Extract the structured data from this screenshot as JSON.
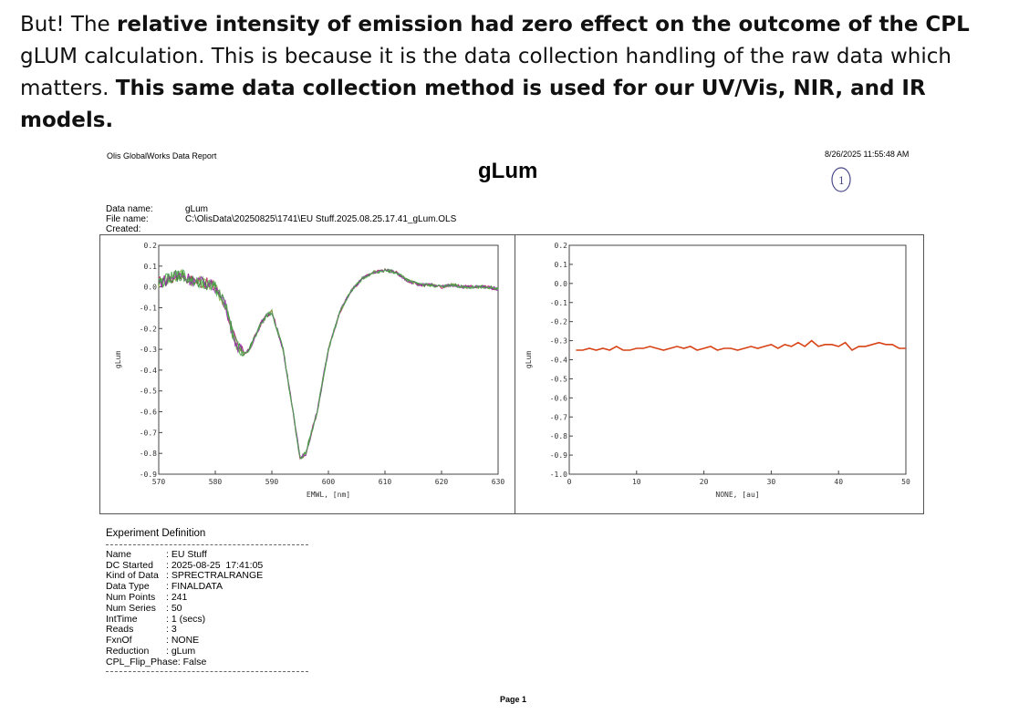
{
  "intro": {
    "p1": "But! The ",
    "b1": "relative intensity of emission had zero effect on the outcome of the CPL",
    "p2": " gLUM calculation. This is because it is the data collection handling of the raw data which matters. ",
    "b2": "This same data collection method is used for our UV/Vis, NIR, and IR models."
  },
  "report": {
    "label": "Olis GlobalWorks Data Report",
    "date": "8/26/2025 11:55:48 AM",
    "title": "gLum",
    "annotation": "1"
  },
  "meta": [
    {
      "key": "Data name:",
      "value": "gLum"
    },
    {
      "key": "File name:",
      "value": "C:\\OlisData\\20250825\\1741\\EU Stuff.2025.08.25.17.41_gLum.OLS"
    },
    {
      "key": "Created:",
      "value": ""
    }
  ],
  "chart_data": [
    {
      "type": "line",
      "xlabel": "EMWL, [nm]",
      "ylabel": "gLum",
      "xlim": [
        570,
        630
      ],
      "ylim": [
        -0.9,
        0.2
      ],
      "xticks": [
        "570",
        "580",
        "590",
        "600",
        "610",
        "620",
        "630"
      ],
      "yticks": [
        "0.2",
        "0.1",
        "0.0",
        "-0.1",
        "-0.2",
        "-0.3",
        "-0.4",
        "-0.5",
        "-0.6",
        "-0.7",
        "-0.8",
        "-0.9"
      ],
      "grid": false,
      "series_colors": [
        "#c2185b",
        "#7cb342",
        "#2e7d32",
        "#9c27b0",
        "#4caf50"
      ],
      "x": [
        570,
        572,
        574,
        576,
        578,
        580,
        582,
        583,
        584,
        585,
        586,
        588,
        589,
        590,
        592,
        594,
        595,
        596,
        598,
        600,
        602,
        604,
        606,
        608,
        610,
        612,
        614,
        616,
        618,
        620,
        622,
        624,
        626,
        628,
        630
      ],
      "y": [
        0.02,
        0.04,
        0.06,
        0.03,
        0.02,
        0.0,
        -0.1,
        -0.22,
        -0.29,
        -0.32,
        -0.3,
        -0.18,
        -0.14,
        -0.12,
        -0.3,
        -0.65,
        -0.82,
        -0.8,
        -0.6,
        -0.3,
        -0.12,
        -0.02,
        0.04,
        0.07,
        0.08,
        0.07,
        0.03,
        0.01,
        0.01,
        0.0,
        0.01,
        0.0,
        0.0,
        0.0,
        -0.01
      ]
    },
    {
      "type": "line",
      "xlabel": "NONE, [au]",
      "ylabel": "gLum",
      "xlim": [
        0,
        50
      ],
      "ylim": [
        -1.0,
        0.2
      ],
      "xticks": [
        "0",
        "10",
        "20",
        "30",
        "40",
        "50"
      ],
      "yticks": [
        "0.2",
        "0.1",
        "0.0",
        "-0.1",
        "-0.2",
        "-0.3",
        "-0.4",
        "-0.5",
        "-0.6",
        "-0.7",
        "-0.8",
        "-0.9",
        "-1.0"
      ],
      "grid": false,
      "color": "#d84315",
      "x": [
        1,
        2,
        3,
        4,
        5,
        6,
        7,
        8,
        9,
        10,
        11,
        12,
        13,
        14,
        15,
        16,
        17,
        18,
        19,
        20,
        21,
        22,
        23,
        24,
        25,
        26,
        27,
        28,
        29,
        30,
        31,
        32,
        33,
        34,
        35,
        36,
        37,
        38,
        39,
        40,
        41,
        42,
        43,
        44,
        45,
        46,
        47,
        48,
        49,
        50
      ],
      "y": [
        -0.35,
        -0.35,
        -0.34,
        -0.35,
        -0.34,
        -0.35,
        -0.33,
        -0.35,
        -0.35,
        -0.34,
        -0.34,
        -0.33,
        -0.34,
        -0.35,
        -0.34,
        -0.33,
        -0.34,
        -0.33,
        -0.35,
        -0.34,
        -0.33,
        -0.35,
        -0.34,
        -0.34,
        -0.35,
        -0.34,
        -0.33,
        -0.34,
        -0.33,
        -0.32,
        -0.34,
        -0.32,
        -0.33,
        -0.31,
        -0.33,
        -0.3,
        -0.33,
        -0.32,
        -0.32,
        -0.33,
        -0.31,
        -0.35,
        -0.33,
        -0.33,
        -0.32,
        -0.31,
        -0.32,
        -0.32,
        -0.34,
        -0.34
      ]
    }
  ],
  "experiment": {
    "heading": "Experiment Definition",
    "rows": [
      {
        "key": "Name",
        "value": ": EU Stuff"
      },
      {
        "key": "DC Started",
        "value": ": 2025-08-25  17:41:05"
      },
      {
        "key": "Kind of Data",
        "value": ": SPRECTRALRANGE"
      },
      {
        "key": "Data Type",
        "value": ": FINALDATA"
      },
      {
        "key": "Num Points",
        "value": ": 241"
      },
      {
        "key": "Num Series",
        "value": ": 50"
      },
      {
        "key": "IntTime",
        "value": ": 1 (secs)"
      },
      {
        "key": "Reads",
        "value": ": 3"
      },
      {
        "key": "FxnOf",
        "value": ": NONE"
      },
      {
        "key": "Reduction",
        "value": ": gLum"
      },
      {
        "key": "CPL_Flip_Phase: False",
        "value": ""
      }
    ]
  },
  "page": {
    "label": "Page 1"
  }
}
